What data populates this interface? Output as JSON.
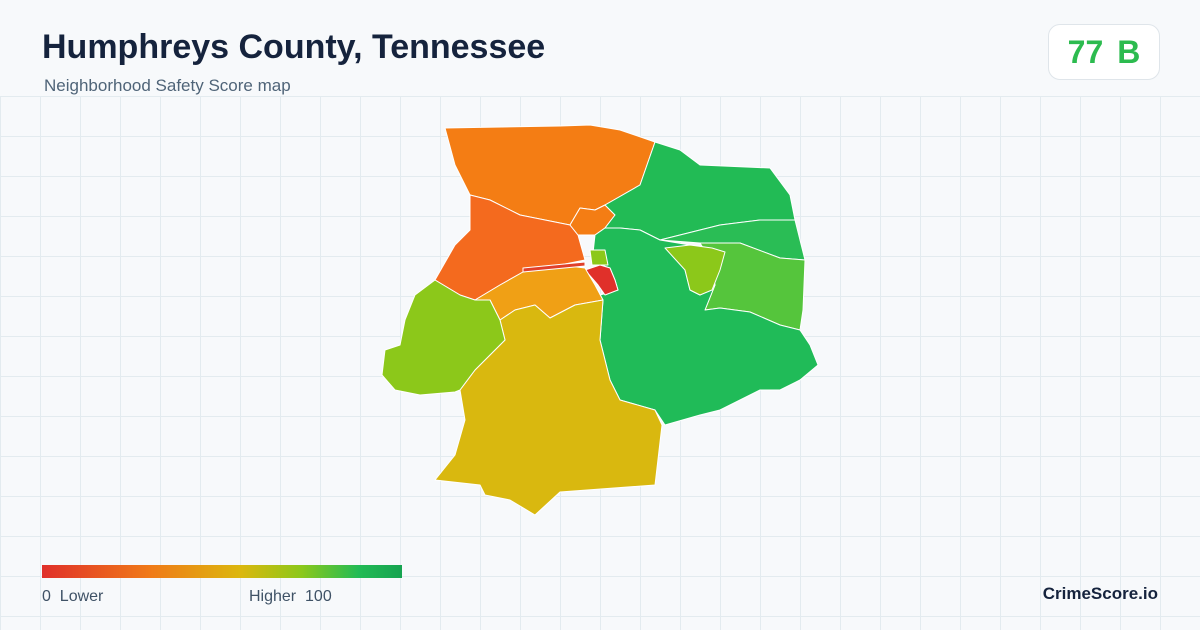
{
  "header": {
    "title": "Humphreys County, Tennessee",
    "subtitle": "Neighborhood Safety Score map"
  },
  "score": {
    "value": "77",
    "grade": "B"
  },
  "legend": {
    "min": "0",
    "min_label": "Lower",
    "max_label": "Higher",
    "max": "100"
  },
  "brand": "CrimeScore.io"
}
